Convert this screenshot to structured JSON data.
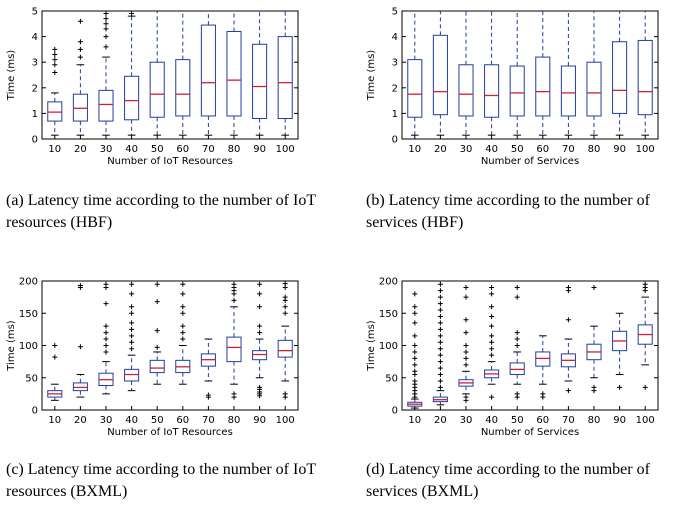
{
  "chart_data": [
    {
      "type": "box",
      "ylabel": "Time (ms)",
      "xlabel": "Number of IoT Resources",
      "ylim": [
        0,
        5
      ],
      "yticks": [
        0,
        1,
        2,
        3,
        4,
        5
      ],
      "categories": [
        "10",
        "20",
        "30",
        "40",
        "50",
        "60",
        "70",
        "80",
        "90",
        "100"
      ],
      "boxes": [
        {
          "whislo": 0.15,
          "q1": 0.7,
          "med": 1.05,
          "q3": 1.45,
          "whishi": 1.8,
          "fliers": [
            2.6,
            2.9,
            3.1,
            3.3,
            3.5
          ]
        },
        {
          "whislo": 0.15,
          "q1": 0.7,
          "med": 1.2,
          "q3": 1.75,
          "whishi": 2.9,
          "fliers": [
            3.2,
            3.5,
            3.8,
            4.6
          ]
        },
        {
          "whislo": 0.15,
          "q1": 0.7,
          "med": 1.35,
          "q3": 1.9,
          "whishi": 3.2,
          "fliers": [
            3.6,
            4.0,
            4.3,
            4.5,
            4.7,
            4.9
          ]
        },
        {
          "whislo": 0.15,
          "q1": 0.75,
          "med": 1.5,
          "q3": 2.45,
          "whishi": 4.8,
          "fliers": [
            4.9
          ]
        },
        {
          "whislo": 0.15,
          "q1": 0.85,
          "med": 1.75,
          "q3": 3.0,
          "whishi": 5.0,
          "fliers": []
        },
        {
          "whislo": 0.15,
          "q1": 0.9,
          "med": 1.75,
          "q3": 3.1,
          "whishi": 5.0,
          "fliers": []
        },
        {
          "whislo": 0.15,
          "q1": 0.9,
          "med": 2.2,
          "q3": 4.45,
          "whishi": 5.0,
          "fliers": []
        },
        {
          "whislo": 0.15,
          "q1": 0.9,
          "med": 2.3,
          "q3": 4.2,
          "whishi": 5.0,
          "fliers": []
        },
        {
          "whislo": 0.15,
          "q1": 0.8,
          "med": 2.05,
          "q3": 3.7,
          "whishi": 5.0,
          "fliers": []
        },
        {
          "whislo": 0.15,
          "q1": 0.8,
          "med": 2.2,
          "q3": 4.0,
          "whishi": 5.0,
          "fliers": []
        }
      ]
    },
    {
      "type": "box",
      "ylabel": "Time (ms)",
      "xlabel": "Number of Services",
      "ylim": [
        0,
        5
      ],
      "yticks": [
        0,
        1,
        2,
        3,
        4,
        5
      ],
      "categories": [
        "10",
        "20",
        "30",
        "40",
        "50",
        "60",
        "70",
        "80",
        "90",
        "100"
      ],
      "boxes": [
        {
          "whislo": 0.15,
          "q1": 0.85,
          "med": 1.75,
          "q3": 3.1,
          "whishi": 5.0,
          "fliers": []
        },
        {
          "whislo": 0.15,
          "q1": 0.95,
          "med": 1.85,
          "q3": 4.05,
          "whishi": 5.0,
          "fliers": []
        },
        {
          "whislo": 0.15,
          "q1": 0.9,
          "med": 1.75,
          "q3": 2.9,
          "whishi": 5.0,
          "fliers": []
        },
        {
          "whislo": 0.15,
          "q1": 0.85,
          "med": 1.7,
          "q3": 2.9,
          "whishi": 5.0,
          "fliers": []
        },
        {
          "whislo": 0.15,
          "q1": 0.9,
          "med": 1.8,
          "q3": 2.85,
          "whishi": 5.0,
          "fliers": []
        },
        {
          "whislo": 0.15,
          "q1": 0.9,
          "med": 1.85,
          "q3": 3.2,
          "whishi": 5.0,
          "fliers": []
        },
        {
          "whislo": 0.15,
          "q1": 0.9,
          "med": 1.8,
          "q3": 2.85,
          "whishi": 5.0,
          "fliers": []
        },
        {
          "whislo": 0.15,
          "q1": 0.9,
          "med": 1.8,
          "q3": 3.0,
          "whishi": 5.0,
          "fliers": []
        },
        {
          "whislo": 0.15,
          "q1": 1.0,
          "med": 1.9,
          "q3": 3.8,
          "whishi": 5.0,
          "fliers": []
        },
        {
          "whislo": 0.15,
          "q1": 0.95,
          "med": 1.85,
          "q3": 3.85,
          "whishi": 5.0,
          "fliers": []
        }
      ]
    },
    {
      "type": "box",
      "ylabel": "Time (ms)",
      "xlabel": "Number of IoT Resources",
      "ylim": [
        0,
        200
      ],
      "yticks": [
        0,
        50,
        100,
        150,
        200
      ],
      "categories": [
        "10",
        "20",
        "30",
        "40",
        "50",
        "60",
        "70",
        "80",
        "90",
        "100"
      ],
      "boxes": [
        {
          "whislo": 15,
          "q1": 20,
          "med": 25,
          "q3": 30,
          "whishi": 40,
          "fliers": [
            82,
            100
          ]
        },
        {
          "whislo": 20,
          "q1": 30,
          "med": 35,
          "q3": 42,
          "whishi": 55,
          "fliers": [
            98,
            190,
            193
          ]
        },
        {
          "whislo": 25,
          "q1": 38,
          "med": 47,
          "q3": 57,
          "whishi": 75,
          "fliers": [
            90,
            100,
            110,
            120,
            130,
            165,
            190,
            195
          ]
        },
        {
          "whislo": 30,
          "q1": 45,
          "med": 55,
          "q3": 63,
          "whishi": 85,
          "fliers": [
            95,
            105,
            115,
            125,
            135,
            150,
            160,
            180,
            195
          ]
        },
        {
          "whislo": 40,
          "q1": 58,
          "med": 65,
          "q3": 77,
          "whishi": 90,
          "fliers": [
            97,
            123,
            168,
            195
          ]
        },
        {
          "whislo": 40,
          "q1": 58,
          "med": 67,
          "q3": 77,
          "whishi": 100,
          "fliers": [
            110,
            120,
            130,
            150,
            160,
            180,
            195
          ]
        },
        {
          "whislo": 45,
          "q1": 68,
          "med": 78,
          "q3": 87,
          "whishi": 110,
          "fliers": [
            20,
            23
          ]
        },
        {
          "whislo": 40,
          "q1": 75,
          "med": 97,
          "q3": 113,
          "whishi": 160,
          "fliers": [
            20,
            25,
            170,
            180,
            185,
            190,
            195
          ]
        },
        {
          "whislo": 50,
          "q1": 78,
          "med": 86,
          "q3": 92,
          "whishi": 110,
          "fliers": [
            22,
            25,
            28,
            32,
            35,
            120,
            130,
            160,
            180,
            195
          ]
        },
        {
          "whislo": 45,
          "q1": 82,
          "med": 92,
          "q3": 108,
          "whishi": 130,
          "fliers": [
            20,
            25,
            150,
            160,
            170,
            175,
            190,
            196
          ]
        }
      ]
    },
    {
      "type": "box",
      "ylabel": "Time (ms)",
      "xlabel": "Number of Services",
      "ylim": [
        0,
        200
      ],
      "yticks": [
        0,
        50,
        100,
        150,
        200
      ],
      "categories": [
        "10",
        "20",
        "30",
        "40",
        "50",
        "60",
        "70",
        "80",
        "90",
        "100"
      ],
      "boxes": [
        {
          "whislo": 3,
          "q1": 6,
          "med": 9,
          "q3": 12,
          "whishi": 17,
          "fliers": [
            20,
            25,
            30,
            35,
            40,
            45,
            55,
            60,
            70,
            80,
            90,
            100,
            115,
            135,
            150,
            160,
            180
          ]
        },
        {
          "whislo": 8,
          "q1": 13,
          "med": 16,
          "q3": 20,
          "whishi": 30,
          "fliers": [
            35,
            45,
            55,
            65,
            75,
            85,
            95,
            105,
            115,
            125,
            135,
            145,
            155,
            165,
            175,
            185,
            195
          ]
        },
        {
          "whislo": 25,
          "q1": 37,
          "med": 42,
          "q3": 47,
          "whishi": 60,
          "fliers": [
            15,
            20,
            70,
            80,
            90,
            100,
            120,
            140,
            175,
            190
          ]
        },
        {
          "whislo": 40,
          "q1": 50,
          "med": 56,
          "q3": 62,
          "whishi": 75,
          "fliers": [
            20,
            85,
            95,
            105,
            115,
            130,
            145,
            160,
            180,
            190
          ]
        },
        {
          "whislo": 40,
          "q1": 55,
          "med": 63,
          "q3": 73,
          "whishi": 90,
          "fliers": [
            20,
            25,
            100,
            110,
            120,
            175,
            190
          ]
        },
        {
          "whislo": 40,
          "q1": 68,
          "med": 80,
          "q3": 90,
          "whishi": 115,
          "fliers": [
            20,
            25
          ]
        },
        {
          "whislo": 45,
          "q1": 67,
          "med": 77,
          "q3": 87,
          "whishi": 110,
          "fliers": [
            30,
            140,
            185,
            190
          ]
        },
        {
          "whislo": 50,
          "q1": 78,
          "med": 90,
          "q3": 102,
          "whishi": 130,
          "fliers": [
            30,
            35,
            190
          ]
        },
        {
          "whislo": 55,
          "q1": 92,
          "med": 107,
          "q3": 122,
          "whishi": 150,
          "fliers": [
            35
          ]
        },
        {
          "whislo": 70,
          "q1": 102,
          "med": 117,
          "q3": 132,
          "whishi": 175,
          "fliers": [
            35,
            185,
            190,
            195
          ]
        }
      ]
    }
  ],
  "captions": {
    "a": "(a) Latency time according to the number of IoT resources (HBF)",
    "b": "(b) Latency time according to the number of services (HBF)",
    "c": "(c) Latency time according to the number of IoT resources (BXML)",
    "d": "(d)  Latency time according to the number of services (BXML)"
  },
  "colors": {
    "box": "#1f3fa0",
    "median": "#d0203a",
    "whisker": "#1f3fa0",
    "flier": "#000000",
    "axis": "#000000"
  }
}
